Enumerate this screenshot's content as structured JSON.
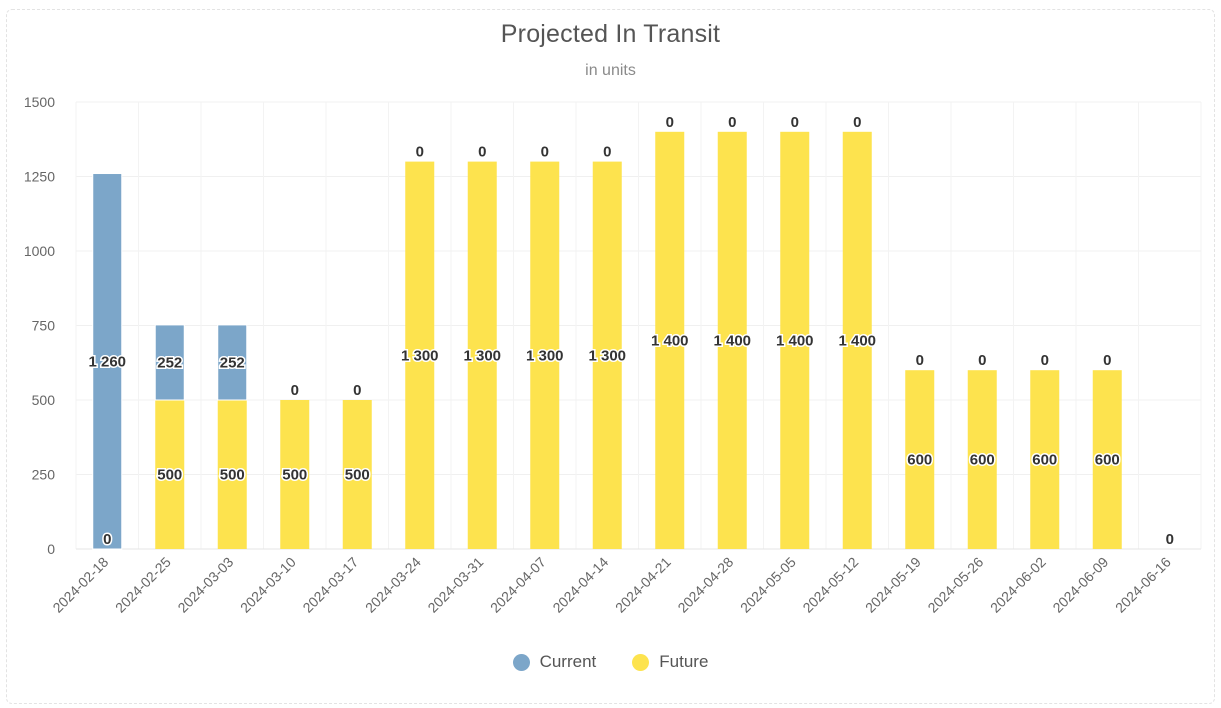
{
  "chart_data": {
    "type": "bar",
    "stacked": true,
    "title": "Projected In Transit",
    "subtitle": "in units",
    "ylim": [
      0,
      1500
    ],
    "yticks": [
      0,
      250,
      500,
      750,
      1000,
      1250,
      1500
    ],
    "ytick_labels": [
      "0",
      "250",
      "500",
      "750",
      "1000",
      "1250",
      "1500"
    ],
    "categories": [
      "2024-02-18",
      "2024-02-25",
      "2024-03-03",
      "2024-03-10",
      "2024-03-17",
      "2024-03-24",
      "2024-03-31",
      "2024-04-07",
      "2024-04-14",
      "2024-04-21",
      "2024-04-28",
      "2024-05-05",
      "2024-05-12",
      "2024-05-19",
      "2024-05-26",
      "2024-06-02",
      "2024-06-09",
      "2024-06-16"
    ],
    "series": [
      {
        "name": "Current",
        "color": "#7ca6c9",
        "values": [
          1260,
          252,
          252,
          0,
          0,
          0,
          0,
          0,
          0,
          0,
          0,
          0,
          0,
          0,
          0,
          0,
          0,
          0
        ],
        "labels": [
          "1 260",
          "252",
          "252",
          "0",
          "0",
          "0",
          "0",
          "0",
          "0",
          "0",
          "0",
          "0",
          "0",
          "0",
          "0",
          "0",
          "0",
          "0"
        ]
      },
      {
        "name": "Future",
        "color": "#fde34e",
        "values": [
          0,
          500,
          500,
          500,
          500,
          1300,
          1300,
          1300,
          1300,
          1400,
          1400,
          1400,
          1400,
          600,
          600,
          600,
          600,
          0
        ],
        "labels": [
          "0",
          "500",
          "500",
          "500",
          "500",
          "1 300",
          "1 300",
          "1 300",
          "1 300",
          "1 400",
          "1 400",
          "1 400",
          "1 400",
          "600",
          "600",
          "600",
          "600",
          ""
        ]
      }
    ],
    "legend_position": "bottom-center",
    "grid": true
  },
  "legend": {
    "current_label": "Current",
    "current_color": "#7ca6c9",
    "future_label": "Future",
    "future_color": "#fde34e"
  }
}
